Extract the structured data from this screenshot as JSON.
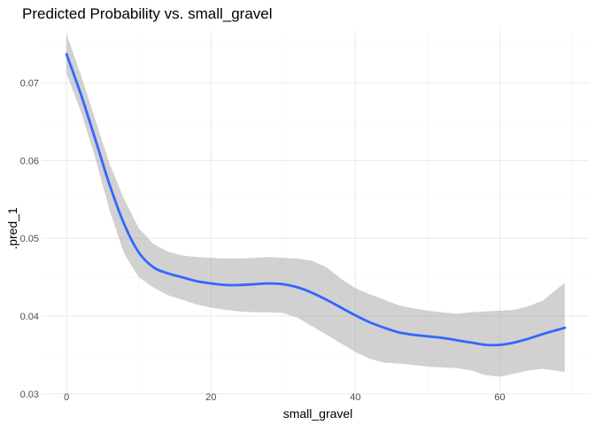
{
  "chart_data": {
    "type": "line",
    "title": "Predicted Probability vs. small_gravel",
    "xlabel": "small_gravel",
    "ylabel": ".pred_1",
    "xlim": [
      -3.45,
      72.45
    ],
    "ylim": [
      0.0302,
      0.0768
    ],
    "x_ticks": [
      0,
      20,
      40,
      60
    ],
    "x_tick_labels": [
      "0",
      "20",
      "40",
      "60"
    ],
    "y_ticks": [
      0.03,
      0.04,
      0.05,
      0.06,
      0.07
    ],
    "y_tick_labels": [
      "0.03",
      "0.04",
      "0.05",
      "0.06",
      "0.07"
    ],
    "grid": true,
    "legend": "none",
    "colors": {
      "line": "#3366ff",
      "band": "#999999",
      "grid_major": "#ebebeb",
      "grid_minor": "#f5f5f5"
    },
    "series": [
      {
        "x": [
          0,
          2,
          4,
          6,
          8,
          10,
          12,
          14,
          16,
          18,
          20,
          22,
          24,
          26,
          28,
          30,
          32,
          34,
          36,
          38,
          40,
          42,
          44,
          46,
          48,
          50,
          52,
          54,
          56,
          58,
          60,
          62,
          64,
          66,
          69
        ],
        "y": [
          0.0737,
          0.0685,
          0.0627,
          0.0568,
          0.0518,
          0.0482,
          0.0463,
          0.0455,
          0.045,
          0.0445,
          0.0442,
          0.044,
          0.044,
          0.0441,
          0.0442,
          0.0441,
          0.0437,
          0.043,
          0.0421,
          0.0411,
          0.0401,
          0.0392,
          0.0385,
          0.0379,
          0.0376,
          0.0374,
          0.0372,
          0.0369,
          0.0366,
          0.0363,
          0.0363,
          0.0366,
          0.0371,
          0.0377,
          0.0385
        ],
        "lower": [
          0.0712,
          0.0663,
          0.0603,
          0.0535,
          0.048,
          0.045,
          0.0437,
          0.0427,
          0.0421,
          0.0415,
          0.0411,
          0.0408,
          0.0406,
          0.0405,
          0.0405,
          0.0404,
          0.0398,
          0.0387,
          0.0376,
          0.0365,
          0.0354,
          0.0345,
          0.034,
          0.0339,
          0.0337,
          0.0335,
          0.0334,
          0.0333,
          0.033,
          0.0324,
          0.0322,
          0.0326,
          0.033,
          0.0332,
          0.0328
        ],
        "upper": [
          0.0763,
          0.071,
          0.0652,
          0.0595,
          0.055,
          0.0513,
          0.0493,
          0.0483,
          0.0478,
          0.0476,
          0.0475,
          0.0474,
          0.0474,
          0.0475,
          0.0476,
          0.0475,
          0.0474,
          0.0471,
          0.0463,
          0.0448,
          0.0436,
          0.0428,
          0.0421,
          0.0414,
          0.041,
          0.0407,
          0.0405,
          0.0403,
          0.0405,
          0.0406,
          0.0407,
          0.0408,
          0.0413,
          0.042,
          0.0443
        ]
      }
    ]
  }
}
